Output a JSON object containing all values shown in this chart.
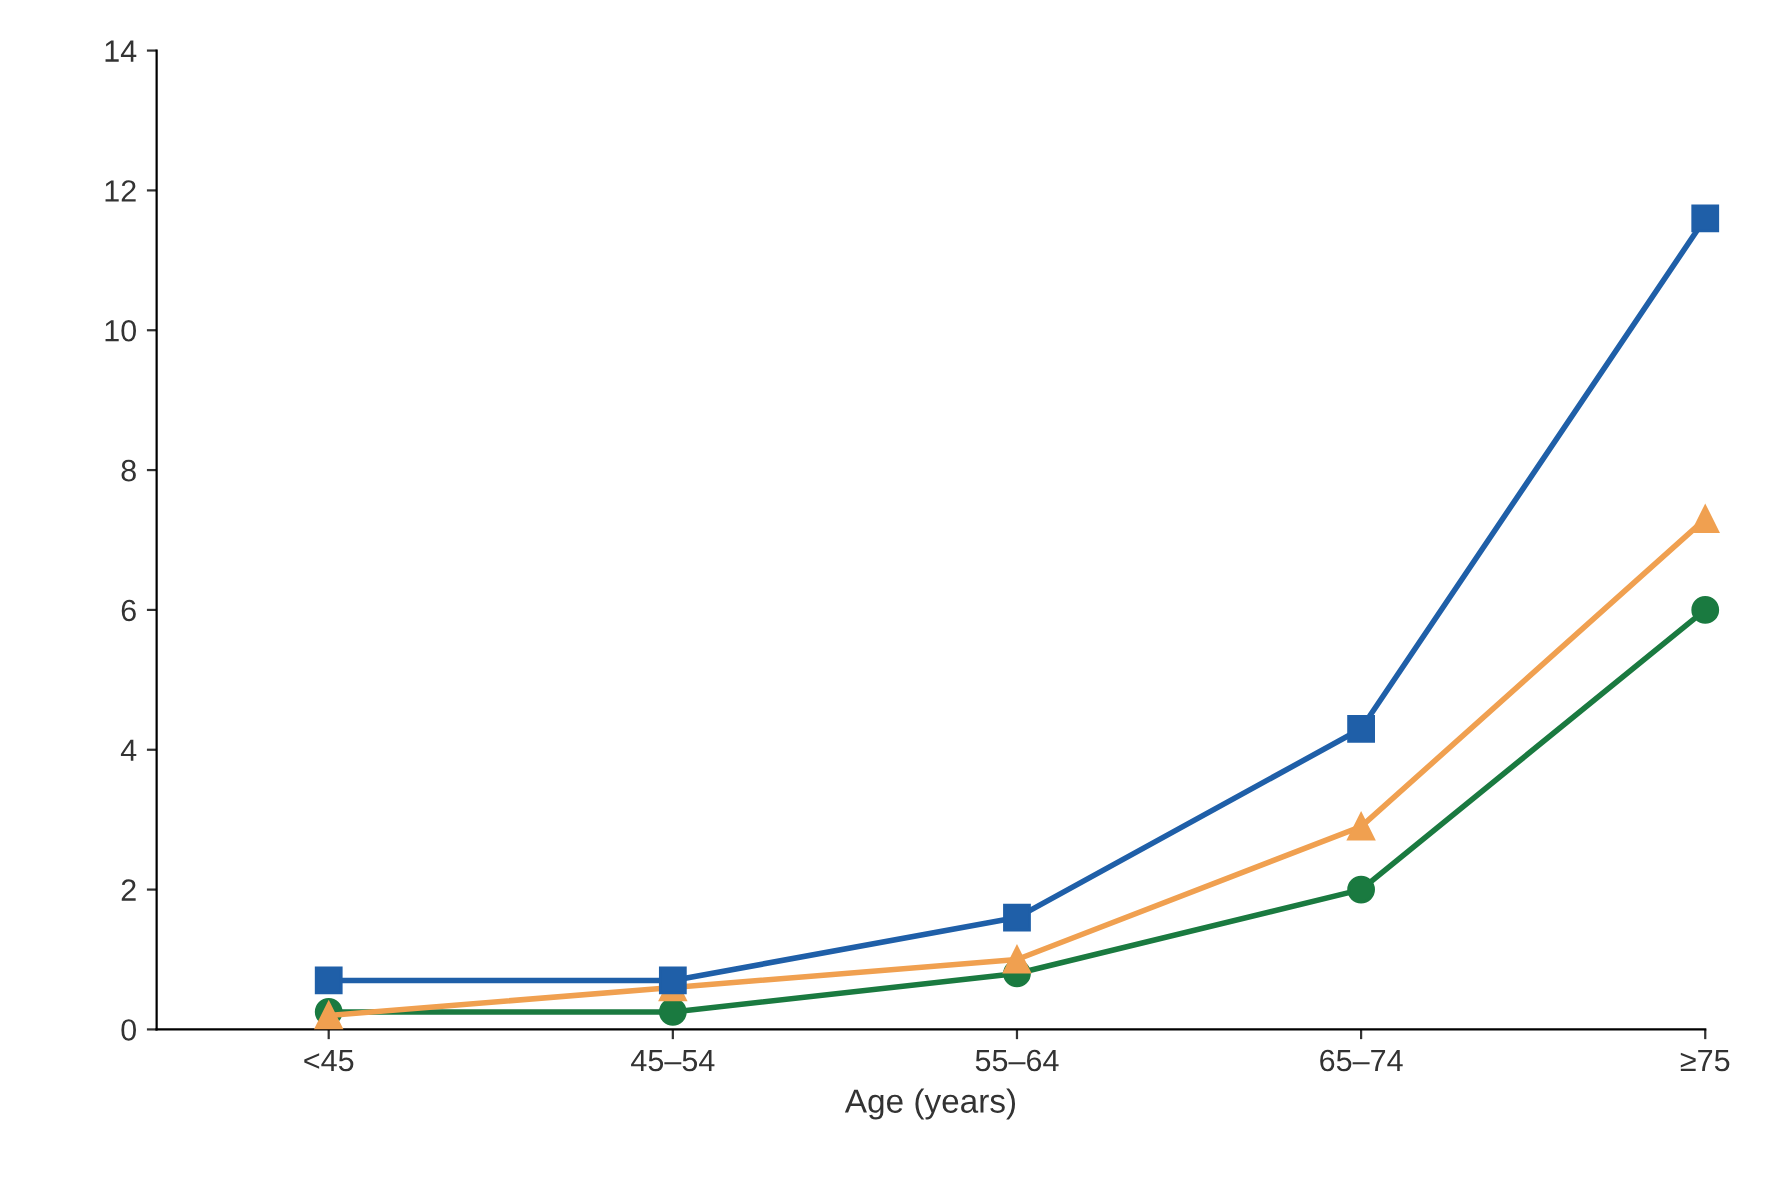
{
  "chart_data": {
    "type": "line",
    "xlabel": "Age (years)",
    "categories": [
      "<45",
      "45–54",
      "55–64",
      "65–74",
      "≥75"
    ],
    "series": [
      {
        "color": "#1f5fa8",
        "marker": "square",
        "values": [
          0.7,
          0.7,
          1.6,
          4.3,
          11.6
        ]
      },
      {
        "color": "#f0a050",
        "marker": "triangle",
        "values": [
          0.2,
          0.6,
          1.0,
          2.9,
          7.3
        ]
      },
      {
        "color": "#1a7a40",
        "marker": "circle",
        "values": [
          0.25,
          0.25,
          0.8,
          2.0,
          6.0
        ]
      }
    ],
    "ylim": [
      0,
      14
    ],
    "yticks": [
      0,
      2,
      4,
      6,
      8,
      10,
      12,
      14
    ],
    "grid": false,
    "legend": false,
    "line_style": "solid"
  }
}
